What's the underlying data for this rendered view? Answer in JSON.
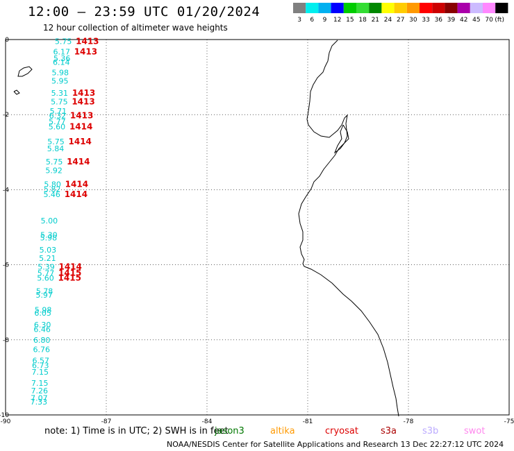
{
  "header": {
    "title": "12:00 – 23:59 UTC 01/20/2024",
    "subtitle": "12 hour collection of altimeter wave heights"
  },
  "legend": {
    "unit": "(ft)",
    "items": [
      {
        "label": "3",
        "color": "#808080"
      },
      {
        "label": "6",
        "color": "#00eeee"
      },
      {
        "label": "9",
        "color": "#00b0f0"
      },
      {
        "label": "12",
        "color": "#0000ff"
      },
      {
        "label": "15",
        "color": "#00cc00"
      },
      {
        "label": "18",
        "color": "#33dd33"
      },
      {
        "label": "21",
        "color": "#008800"
      },
      {
        "label": "24",
        "color": "#ffff00"
      },
      {
        "label": "27",
        "color": "#ffcc00"
      },
      {
        "label": "30",
        "color": "#ff9900"
      },
      {
        "label": "33",
        "color": "#ff0000"
      },
      {
        "label": "36",
        "color": "#cc0000"
      },
      {
        "label": "39",
        "color": "#880000"
      },
      {
        "label": "42",
        "color": "#aa00aa"
      },
      {
        "label": "45",
        "color": "#ccbbff"
      },
      {
        "label": "70",
        "color": "#ff88ff"
      },
      {
        "label": "",
        "color": "#000000"
      }
    ]
  },
  "axes": {
    "x_ticks": [
      "-90",
      "-87",
      "-84",
      "-81",
      "-78",
      "-75"
    ],
    "y_ticks": [
      "0",
      "-2",
      "-4",
      "-6",
      "-8",
      "-10"
    ]
  },
  "observations": [
    {
      "swh": "5.75",
      "lon": -88.28,
      "lat": -0.05,
      "time": "1413"
    },
    {
      "swh": "6.17",
      "lon": -88.33,
      "lat": -0.32,
      "time": "1413"
    },
    {
      "swh": "5.36",
      "lon": -88.32,
      "lat": -0.5
    },
    {
      "swh": "6.14",
      "lon": -88.34,
      "lat": -0.6
    },
    {
      "swh": "5.98",
      "lon": -88.37,
      "lat": -0.88
    },
    {
      "swh": "5.95",
      "lon": -88.38,
      "lat": -1.1
    },
    {
      "swh": "5.31",
      "lon": -88.39,
      "lat": -1.42,
      "time": "1413"
    },
    {
      "swh": "5.75",
      "lon": -88.4,
      "lat": -1.65,
      "time": "1413"
    },
    {
      "swh": "5.71",
      "lon": -88.43,
      "lat": -1.9
    },
    {
      "swh": "6.32",
      "lon": -88.45,
      "lat": -2.02,
      "time": "1413"
    },
    {
      "swh": "5.77",
      "lon": -88.46,
      "lat": -2.18
    },
    {
      "swh": "5.60",
      "lon": -88.47,
      "lat": -2.32,
      "time": "1414"
    },
    {
      "swh": "5.75",
      "lon": -88.5,
      "lat": -2.72,
      "time": "1414"
    },
    {
      "swh": "5.84",
      "lon": -88.51,
      "lat": -2.9
    },
    {
      "swh": "5.75",
      "lon": -88.55,
      "lat": -3.25,
      "time": "1414"
    },
    {
      "swh": "5.92",
      "lon": -88.56,
      "lat": -3.48
    },
    {
      "swh": "5.80",
      "lon": -88.6,
      "lat": -3.85,
      "time": "1414"
    },
    {
      "swh": "5.82",
      "lon": -88.61,
      "lat": -3.98
    },
    {
      "swh": "5.46",
      "lon": -88.62,
      "lat": -4.12,
      "time": "1414"
    },
    {
      "swh": "5.00",
      "lon": -88.7,
      "lat": -4.82
    },
    {
      "swh": "5.30",
      "lon": -88.71,
      "lat": -5.2
    },
    {
      "swh": "5.98",
      "lon": -88.72,
      "lat": -5.28
    },
    {
      "swh": "5.03",
      "lon": -88.74,
      "lat": -5.6
    },
    {
      "swh": "5.21",
      "lon": -88.75,
      "lat": -5.82
    },
    {
      "swh": "5.39",
      "lon": -88.79,
      "lat": -6.05,
      "time": "1414"
    },
    {
      "swh": "5.77",
      "lon": -88.8,
      "lat": -6.22,
      "time": "1415"
    },
    {
      "swh": "5.60",
      "lon": -88.81,
      "lat": -6.35,
      "time": "1415"
    },
    {
      "swh": "5.78",
      "lon": -88.84,
      "lat": -6.7
    },
    {
      "swh": "5.97",
      "lon": -88.85,
      "lat": -6.8
    },
    {
      "swh": "5.98",
      "lon": -88.88,
      "lat": -7.2
    },
    {
      "swh": "6.05",
      "lon": -88.89,
      "lat": -7.28
    },
    {
      "swh": "6.30",
      "lon": -88.9,
      "lat": -7.6
    },
    {
      "swh": "6.46",
      "lon": -88.91,
      "lat": -7.72
    },
    {
      "swh": "6.80",
      "lon": -88.92,
      "lat": -8.0
    },
    {
      "swh": "6.76",
      "lon": -88.93,
      "lat": -8.25
    },
    {
      "swh": "6.57",
      "lon": -88.95,
      "lat": -8.55
    },
    {
      "swh": "6.73",
      "lon": -88.96,
      "lat": -8.68
    },
    {
      "swh": "7.15",
      "lon": -88.97,
      "lat": -8.85
    },
    {
      "swh": "7.15",
      "lon": -88.98,
      "lat": -9.15
    },
    {
      "swh": "7.26",
      "lon": -88.99,
      "lat": -9.35
    },
    {
      "swh": "7.07",
      "lon": -89.0,
      "lat": -9.55
    },
    {
      "swh": "7.33",
      "lon": -89.01,
      "lat": -9.65
    }
  ],
  "colors": {
    "swh_text": "#00cccc",
    "time_text": "#dd0000",
    "grid": "#000000"
  },
  "footer": {
    "note": "note:  1) Time is in UTC; 2) SWH is in feet",
    "satellites": [
      {
        "name": "jason3",
        "color": "#007700"
      },
      {
        "name": "altika",
        "color": "#ff9900"
      },
      {
        "name": "cryosat",
        "color": "#dd0000"
      },
      {
        "name": "s3a",
        "color": "#aa0000"
      },
      {
        "name": "s3b",
        "color": "#bbaaff"
      },
      {
        "name": "swot",
        "color": "#ff88ee"
      }
    ],
    "credit": "NOAA/NESDIS Center for Satellite Applications and Research   13 Dec 22:27:12 UTC 2024"
  }
}
